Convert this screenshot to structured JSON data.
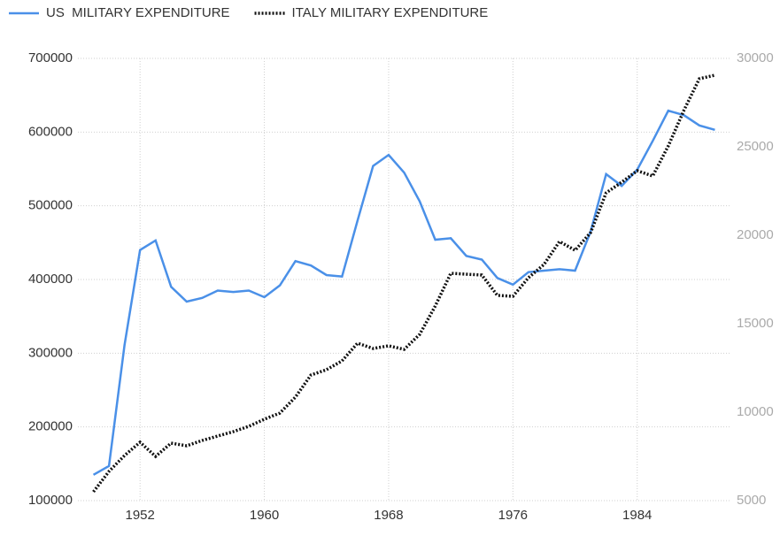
{
  "chart_data": {
    "type": "line",
    "x": [
      1949,
      1950,
      1951,
      1952,
      1953,
      1954,
      1955,
      1956,
      1957,
      1958,
      1959,
      1960,
      1961,
      1962,
      1963,
      1964,
      1965,
      1966,
      1967,
      1968,
      1969,
      1970,
      1971,
      1972,
      1973,
      1974,
      1975,
      1976,
      1977,
      1978,
      1979,
      1980,
      1981,
      1982,
      1983,
      1984,
      1985,
      1986,
      1987,
      1988,
      1989
    ],
    "series": [
      {
        "name": "US  MILITARY EXPENDITURE",
        "color": "#4a90e8",
        "dash": "solid",
        "values": [
          135000,
          147000,
          311000,
          440000,
          453000,
          390000,
          370000,
          375000,
          385000,
          383000,
          385000,
          376000,
          392000,
          425000,
          419000,
          406000,
          404000,
          480000,
          554000,
          569000,
          545000,
          506000,
          454000,
          456000,
          432000,
          427000,
          402000,
          393000,
          410000,
          412000,
          414000,
          412000,
          465000,
          543000,
          527000,
          549000,
          588000,
          629000,
          623000,
          609000,
          603000
        ]
      },
      {
        "name": "ITALY MILITARY EXPENDITURE",
        "color": "#111111",
        "dash": "dotted",
        "axis": "y2",
        "values": [
          5500,
          6650,
          7550,
          8300,
          7500,
          8250,
          8100,
          8400,
          8650,
          8900,
          9200,
          9600,
          9950,
          10850,
          12100,
          12400,
          12900,
          13900,
          13600,
          13750,
          13550,
          14400,
          16000,
          17850,
          17800,
          17750,
          16600,
          16550,
          17600,
          18350,
          19650,
          19150,
          20150,
          22400,
          23000,
          23650,
          23350,
          25050,
          27050,
          28850,
          29050
        ]
      }
    ],
    "xlim": [
      1948,
      1990
    ],
    "xticks": [
      1952,
      1960,
      1968,
      1976,
      1984
    ],
    "ylim": [
      100000,
      700000
    ],
    "yticks": [
      100000,
      200000,
      300000,
      400000,
      500000,
      600000,
      700000
    ],
    "y2lim": [
      5000,
      30000
    ],
    "y2ticks": [
      5000,
      10000,
      15000,
      20000,
      25000,
      30000
    ],
    "grid": true,
    "legend": "top-left"
  }
}
